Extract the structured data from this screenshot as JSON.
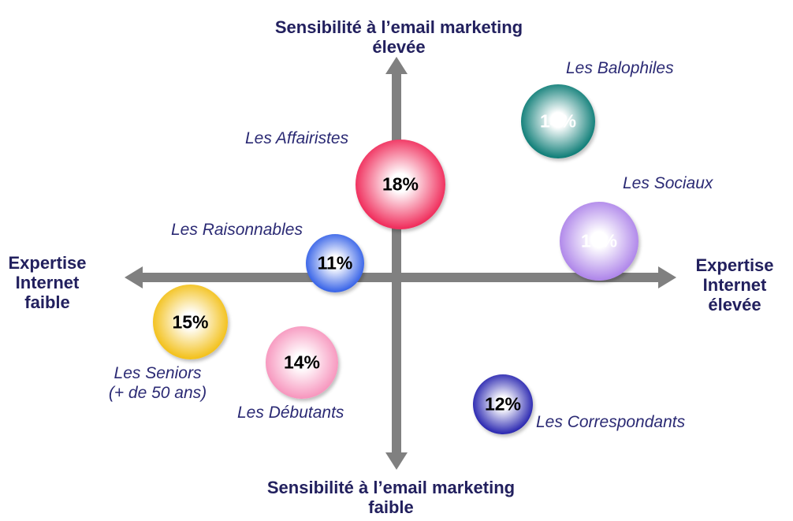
{
  "axes": {
    "top": [
      "Sensibilité à l’email marketing",
      "élevée"
    ],
    "bottom": [
      "Sensibilité à l’email marketing",
      "faible"
    ],
    "left": [
      "Expertise",
      "Internet",
      "faible"
    ],
    "right": [
      "Expertise",
      "Internet",
      "élevée"
    ]
  },
  "segments": [
    {
      "id": "balophiles",
      "name": "Les Balophiles",
      "percent": "14%",
      "color": "#13807a",
      "text_color": "#ffffff"
    },
    {
      "id": "affairistes",
      "name": "Les Affairistes",
      "percent": "18%",
      "color": "#f0305e",
      "text_color": "#000000"
    },
    {
      "id": "sociaux",
      "name": "Les Sociaux",
      "percent": "16%",
      "color": "#b088ea",
      "text_color": "#ffffff"
    },
    {
      "id": "raisonnables",
      "name": "Les Raisonnables",
      "percent": "11%",
      "color": "#3b66e8",
      "text_color": "#000000"
    },
    {
      "id": "seniors",
      "name": "Les Seniors",
      "subname": "(+ de 50 ans)",
      "percent": "15%",
      "color": "#f3c21f",
      "text_color": "#000000"
    },
    {
      "id": "debutants",
      "name": "Les Débutants",
      "percent": "14%",
      "color": "#f798bf",
      "text_color": "#000000"
    },
    {
      "id": "correspondants",
      "name": "Les Correspondants",
      "percent": "12%",
      "color": "#2e2bb2",
      "text_color": "#000000"
    }
  ]
}
